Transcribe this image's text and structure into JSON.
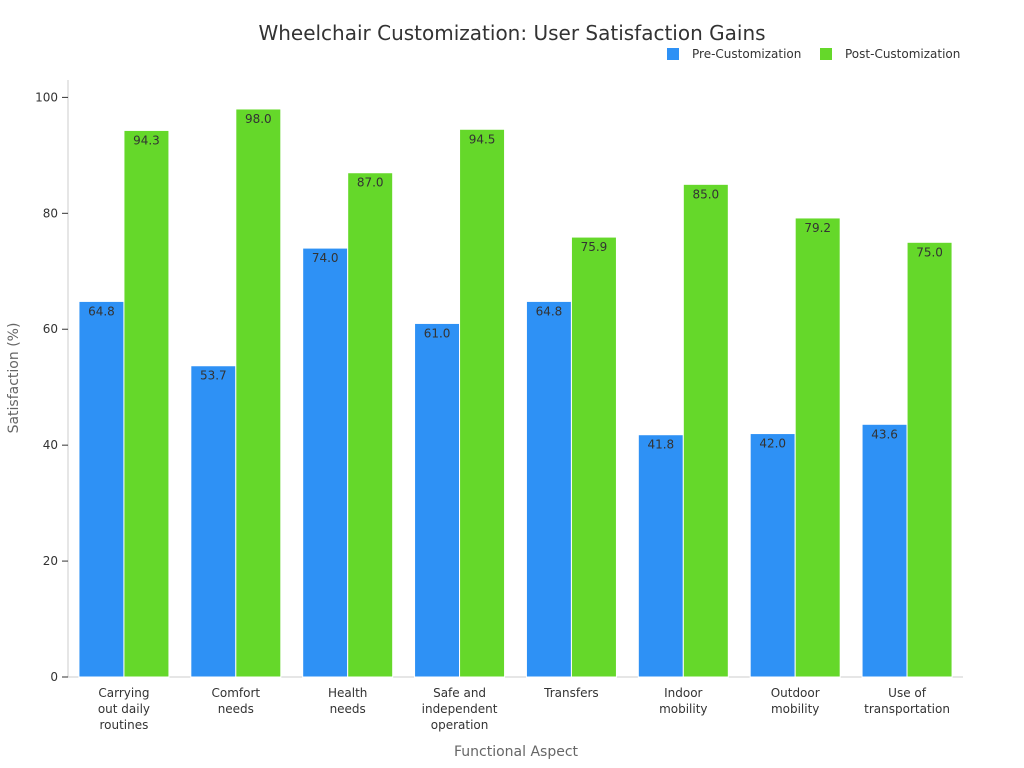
{
  "chart_data": {
    "type": "bar",
    "title": "Wheelchair Customization: User Satisfaction Gains",
    "xlabel": "Functional Aspect",
    "ylabel": "Satisfaction (%)",
    "ylim": [
      0,
      103
    ],
    "yticks": [
      0,
      20,
      40,
      60,
      80,
      100
    ],
    "grid": false,
    "legend_position": "top-right",
    "categories": [
      [
        "Carrying",
        "out daily",
        "routines"
      ],
      [
        "Comfort",
        "needs"
      ],
      [
        "Health",
        "needs"
      ],
      [
        "Safe and",
        "independent",
        "operation"
      ],
      [
        "Transfers"
      ],
      [
        "Indoor",
        "mobility"
      ],
      [
        "Outdoor",
        "mobility"
      ],
      [
        "Use of",
        "transportation"
      ]
    ],
    "series": [
      {
        "name": "Pre-Customization",
        "color": "#2e91f5",
        "values": [
          64.8,
          53.7,
          74.0,
          61.0,
          64.8,
          41.8,
          42.0,
          43.6
        ]
      },
      {
        "name": "Post-Customization",
        "color": "#65d82a",
        "values": [
          94.3,
          98.0,
          87.0,
          94.5,
          75.9,
          85.0,
          79.2,
          75.0
        ]
      }
    ]
  }
}
